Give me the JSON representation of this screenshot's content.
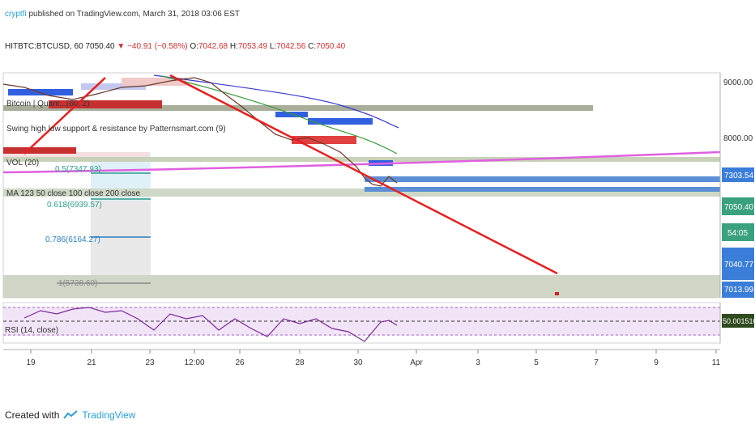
{
  "header": {
    "publisher": "cryptfi",
    "published_text": "published on TradingView.com, March 31, 2018 03:06 EST",
    "symbol_line": "HITBTC:BTCUSD, 60",
    "last": "7050.40",
    "change": "▼ −40.91 (−0.58%)",
    "o_label": "O:",
    "o": "7042.68",
    "h_label": "H:",
    "h": "7053.49",
    "l_label": "L:",
    "l": "7042.56",
    "c_label": "C:",
    "c": "7050.40"
  },
  "indicators": {
    "bitcoin_label": "Bitcoin | Quant...(60, 2)",
    "swing_label": "Swing high low support & resistance by Patternsmart.com (9)",
    "vol_label": "VOL (20)",
    "ma_label": "MA 123 50 close 100 close 200 close",
    "rsi_label": "RSI (14, close)"
  },
  "fib_levels": [
    {
      "label": "0.5(7347.93)",
      "color": "#2e9e8a"
    },
    {
      "label": "0.618(6939.57)",
      "color": "#2e9e8a"
    },
    {
      "label": "0.786(6164.27)",
      "color": "#2a7fc0"
    },
    {
      "label": "1(5728.60)",
      "color": "#888888"
    }
  ],
  "price_axis": {
    "ticks": [
      "9000.00",
      "8000.00"
    ],
    "badges": [
      {
        "text": "7303.54",
        "color": "#3b7ed9"
      },
      {
        "text": "7050.40",
        "color": "#3aa17e"
      },
      {
        "text": "54:05",
        "color": "#3aa17e"
      },
      {
        "text": "7040.77",
        "color": "#3b7ed9"
      },
      {
        "text": "7013.99",
        "color": "#3b7ed9"
      }
    ]
  },
  "rsi_axis": {
    "badge": "50.00151066",
    "badge_color": "#2e4a1e"
  },
  "time_axis": [
    "19",
    "21",
    "23",
    "12:00",
    "26",
    "28",
    "30",
    "Apr",
    "3",
    "5",
    "7",
    "9",
    "11"
  ],
  "footer": {
    "created_with": "Created with",
    "brand": "TradingView"
  },
  "chart_data": {
    "type": "line",
    "title": "HITBTC:BTCUSD, 60",
    "xlabel": "",
    "ylabel": "",
    "price_y_ticks": [
      9000,
      8000
    ],
    "last_price": 7050.4,
    "series": [
      {
        "name": "HITBTC:BTCUSD",
        "x": [
          "19",
          "21",
          "23",
          "26",
          "28",
          "30",
          "Apr"
        ],
        "values": [
          8350,
          8950,
          8800,
          8150,
          7950,
          7250,
          7050
        ]
      }
    ],
    "rsi": {
      "label": "RSI (14, close)",
      "last": 50.00151066
    }
  }
}
